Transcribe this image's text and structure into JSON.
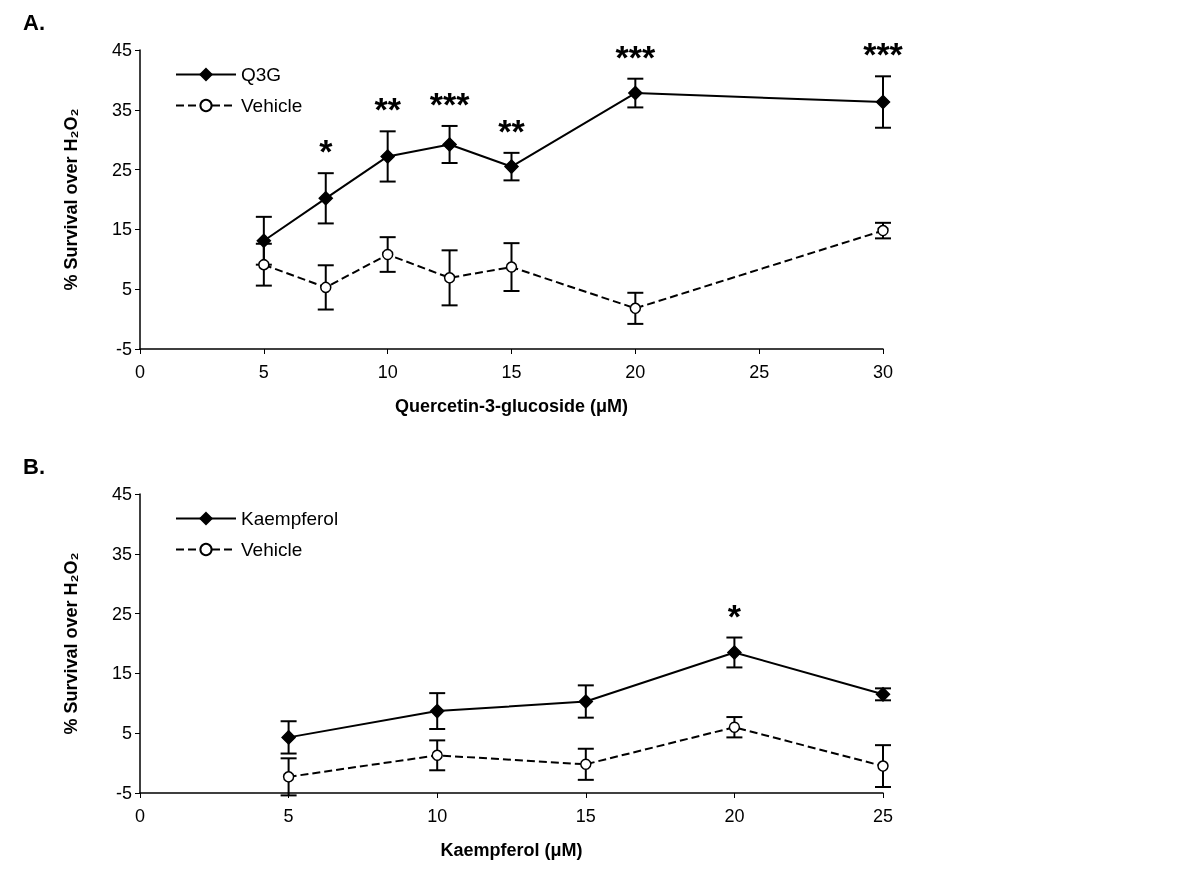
{
  "chart_data": [
    {
      "type": "line",
      "title": "A.",
      "xlabel": "Quercetin-3-glucoside (μM)",
      "ylabel": "% Survival over H₂O₂",
      "xlim": [
        0,
        30
      ],
      "xticks": [
        0,
        5,
        10,
        15,
        20,
        25,
        30
      ],
      "ylim": [
        -5,
        45
      ],
      "yticks": [
        -5,
        5,
        15,
        25,
        35,
        45
      ],
      "legend": "top left",
      "series": [
        {
          "name": "Q3G",
          "color": "#000000",
          "marker": "diamond",
          "line_style": "solid",
          "x": [
            5,
            7.5,
            10,
            12.5,
            15,
            20,
            30
          ],
          "values": [
            13.1,
            20.2,
            27.2,
            29.2,
            25.5,
            37.8,
            36.3
          ],
          "errors": [
            4,
            4.2,
            4.2,
            3.1,
            2.3,
            2.4,
            4.3
          ]
        },
        {
          "name": "Vehicle",
          "color": "#000000",
          "marker": "circle",
          "line_style": "dashed",
          "x": [
            5,
            7.5,
            10,
            12.5,
            15,
            20,
            30
          ],
          "values": [
            9.1,
            5.3,
            10.8,
            6.9,
            8.7,
            1.8,
            14.8
          ],
          "errors": [
            3.5,
            3.7,
            2.9,
            4.6,
            4,
            2.6,
            1.3
          ]
        }
      ],
      "annotations": [
        {
          "text": "*",
          "x": 7.5,
          "y": 20.2
        },
        {
          "text": "**",
          "x": 10,
          "y": 27.2
        },
        {
          "text": "***",
          "x": 12.5,
          "y": 29.2
        },
        {
          "text": "**",
          "x": 15,
          "y": 25.5
        },
        {
          "text": "***",
          "x": 20,
          "y": 37.8
        },
        {
          "text": "***",
          "x": 30,
          "y": 36.3
        }
      ]
    },
    {
      "type": "line",
      "title": "B.",
      "xlabel": "Kaempferol (μM)",
      "ylabel": "% Survival over H₂O₂",
      "xlim": [
        0,
        25
      ],
      "xticks": [
        0,
        5,
        10,
        15,
        20,
        25
      ],
      "ylim": [
        -5,
        45
      ],
      "yticks": [
        -5,
        5,
        15,
        25,
        35,
        45
      ],
      "legend": "top left",
      "series": [
        {
          "name": "Kaempferol",
          "color": "#000000",
          "marker": "diamond",
          "line_style": "solid",
          "x": [
            5,
            10,
            15,
            20,
            25
          ],
          "values": [
            4.3,
            8.7,
            10.3,
            18.5,
            11.5
          ],
          "errors": [
            2.7,
            3,
            2.7,
            2.5,
            1
          ]
        },
        {
          "name": "Vehicle",
          "color": "#000000",
          "marker": "circle",
          "line_style": "dashed",
          "x": [
            5,
            10,
            15,
            20,
            25
          ],
          "values": [
            -2.3,
            1.3,
            -0.2,
            6,
            -0.5
          ],
          "errors": [
            3.1,
            2.5,
            2.6,
            1.7,
            3.5
          ]
        }
      ],
      "annotations": [
        {
          "text": "*",
          "x": 20,
          "y": 18.5
        }
      ]
    }
  ]
}
